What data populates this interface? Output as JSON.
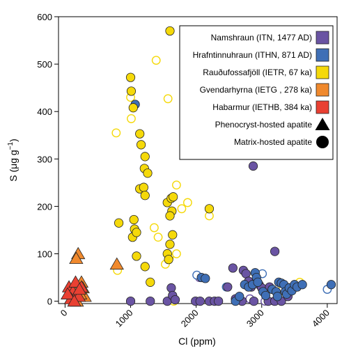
{
  "chart_data": {
    "type": "scatter",
    "xlabel": "Cl (ppm)",
    "ylabel_main": "S (μg g",
    "ylabel_sup": "−1",
    "ylabel_close": ")",
    "xlim": [
      -100,
      4150
    ],
    "ylim": [
      -5,
      600
    ],
    "xticks": [
      0,
      1000,
      2000,
      3000,
      4000
    ],
    "yticks": [
      0,
      100,
      200,
      300,
      400,
      500,
      600
    ],
    "xtick_labels": [
      "0",
      "1000",
      "2000",
      "3000",
      "4000"
    ],
    "ytick_labels": [
      "0",
      "100",
      "200",
      "300",
      "400",
      "500",
      "600"
    ],
    "legend_position": "top-right",
    "series": [
      {
        "name": "Namshraun (ITN, 1477 AD)",
        "color": "#6a54a3",
        "phenocryst": [],
        "matrix_filled": [
          [
            1000,
            0
          ],
          [
            1300,
            0
          ],
          [
            1560,
            0
          ],
          [
            1620,
            28
          ],
          [
            1640,
            12
          ],
          [
            1680,
            3
          ],
          [
            1990,
            0
          ],
          [
            2060,
            0
          ],
          [
            2200,
            0
          ],
          [
            2280,
            0
          ],
          [
            2340,
            0
          ],
          [
            2480,
            30
          ],
          [
            2560,
            70
          ],
          [
            2600,
            5
          ],
          [
            2700,
            0
          ],
          [
            2720,
            65
          ],
          [
            2760,
            58
          ],
          [
            2800,
            42
          ],
          [
            2840,
            30
          ],
          [
            2870,
            285
          ],
          [
            2880,
            0
          ],
          [
            2960,
            35
          ],
          [
            3000,
            28
          ],
          [
            3100,
            0
          ],
          [
            3120,
            30
          ],
          [
            3200,
            105
          ],
          [
            3200,
            0
          ],
          [
            3300,
            0
          ],
          [
            3400,
            10
          ]
        ],
        "matrix_open": [
          [
            2820,
            5
          ],
          [
            3050,
            0
          ],
          [
            3190,
            0
          ],
          [
            2050,
            50
          ]
        ]
      },
      {
        "name": "Hrafntinnuhraun (ITHN, 871 AD)",
        "color": "#3f6fb6",
        "phenocryst": [],
        "matrix_filled": [
          [
            1070,
            415
          ],
          [
            2080,
            50
          ],
          [
            2140,
            48
          ],
          [
            2600,
            0
          ],
          [
            2660,
            10
          ],
          [
            2740,
            35
          ],
          [
            2800,
            30
          ],
          [
            2860,
            35
          ],
          [
            2900,
            60
          ],
          [
            2920,
            50
          ],
          [
            2940,
            40
          ],
          [
            3020,
            20
          ],
          [
            3060,
            12
          ],
          [
            3160,
            25
          ],
          [
            3220,
            20
          ],
          [
            3260,
            40
          ],
          [
            3300,
            38
          ],
          [
            3340,
            35
          ],
          [
            3360,
            20
          ],
          [
            3380,
            15
          ],
          [
            3420,
            28
          ],
          [
            3460,
            22
          ],
          [
            3500,
            35
          ],
          [
            3540,
            30
          ],
          [
            3620,
            35
          ],
          [
            4060,
            35
          ],
          [
            3240,
            10
          ]
        ],
        "matrix_open": [
          [
            2010,
            55
          ],
          [
            2460,
            30
          ],
          [
            3010,
            58
          ],
          [
            3400,
            25
          ],
          [
            4000,
            25
          ]
        ]
      },
      {
        "name": "Rauðufossafjöll (IETR, 67 ka)",
        "color": "#f5d90a",
        "phenocryst": [],
        "matrix_filled": [
          [
            1000,
            472
          ],
          [
            1010,
            443
          ],
          [
            1040,
            408
          ],
          [
            1140,
            353
          ],
          [
            1160,
            330
          ],
          [
            1220,
            305
          ],
          [
            1210,
            280
          ],
          [
            1260,
            270
          ],
          [
            1140,
            237
          ],
          [
            1200,
            240
          ],
          [
            1220,
            223
          ],
          [
            1600,
            570
          ],
          [
            1560,
            208
          ],
          [
            1630,
            190
          ],
          [
            1600,
            180
          ],
          [
            1640,
            140
          ],
          [
            1600,
            120
          ],
          [
            1560,
            100
          ],
          [
            1580,
            88
          ],
          [
            1220,
            73
          ],
          [
            1300,
            40
          ],
          [
            1050,
            172
          ],
          [
            1060,
            152
          ],
          [
            1030,
            135
          ],
          [
            1090,
            145
          ],
          [
            1090,
            95
          ],
          [
            820,
            165
          ],
          [
            2200,
            195
          ],
          [
            1620,
            217
          ],
          [
            1650,
            220
          ]
        ],
        "matrix_open": [
          [
            780,
            355
          ],
          [
            1000,
            430
          ],
          [
            1010,
            385
          ],
          [
            1390,
            508
          ],
          [
            1570,
            427
          ],
          [
            1700,
            245
          ],
          [
            1780,
            195
          ],
          [
            1870,
            208
          ],
          [
            2200,
            180
          ],
          [
            1360,
            155
          ],
          [
            1420,
            135
          ],
          [
            1530,
            78
          ],
          [
            1590,
            93
          ],
          [
            1700,
            100
          ],
          [
            800,
            65
          ],
          [
            1000,
            0
          ],
          [
            1660,
            0
          ],
          [
            2880,
            40
          ],
          [
            3580,
            40
          ],
          [
            3300,
            22
          ]
        ]
      },
      {
        "name": "Gvendarhyrna (IETG , 278 ka)",
        "color": "#f0892d",
        "phenocryst": [
          [
            200,
            100
          ],
          [
            170,
            90
          ],
          [
            250,
            40
          ],
          [
            270,
            28
          ],
          [
            180,
            0
          ],
          [
            150,
            15
          ],
          [
            300,
            10
          ],
          [
            230,
            15
          ],
          [
            120,
            25
          ]
        ],
        "phenocryst_open": [
          [
            790,
            78
          ]
        ],
        "matrix_filled": [],
        "matrix_open": []
      },
      {
        "name": "Habarmur (IETHB, 384 ka)",
        "color": "#e94032",
        "phenocryst": [
          [
            60,
            30
          ],
          [
            120,
            20
          ],
          [
            160,
            40
          ],
          [
            210,
            10
          ],
          [
            250,
            30
          ],
          [
            90,
            5
          ],
          [
            40,
            15
          ],
          [
            140,
            0
          ],
          [
            220,
            25
          ]
        ],
        "matrix_filled": [],
        "matrix_open": []
      }
    ],
    "legend": {
      "entries": [
        {
          "label": "Namshraun (ITN, 1477 AD)",
          "color": "#6a54a3"
        },
        {
          "label": "Hrafntinnuhraun (ITHN, 871 AD)",
          "color": "#3f6fb6"
        },
        {
          "label": "Rauðufossafjöll (IETR, 67 ka)",
          "color": "#f5d90a"
        },
        {
          "label": "Gvendarhyrna (IETG , 278 ka)",
          "color": "#f0892d"
        },
        {
          "label": "Habarmur (IETHB, 384 ka)",
          "color": "#e94032"
        }
      ],
      "symbols": [
        {
          "label": "Phenocryst-hosted apatite",
          "shape": "triangle"
        },
        {
          "label": "Matrix-hosted apatite",
          "shape": "circle"
        }
      ]
    }
  }
}
